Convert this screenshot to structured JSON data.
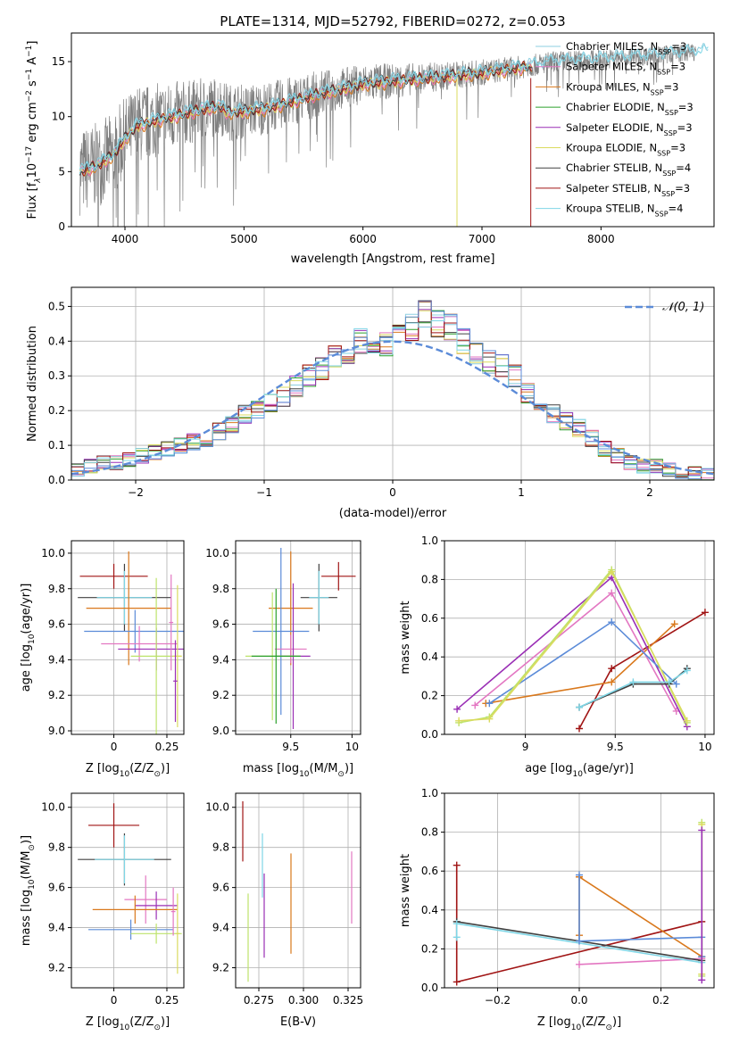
{
  "figure": {
    "title": "PLATE=1314, MJD=52792, FIBERID=0272, z=0.053"
  },
  "colors": {
    "spectrum": "#7f7f7f",
    "chabrier_miles": "#8ecfe0",
    "salpeter_miles": "#e377c2",
    "kroupa_miles": "#d9781c",
    "chabrier_elodie": "#2ca02c",
    "salpeter_elodie": "#9a2fb5",
    "kroupa_elodie": "#dbdb5f",
    "chabrier_stelib": "#404040",
    "salpeter_stelib": "#a01414",
    "kroupa_stelib": "#7fd6e6",
    "gauss": "#5b8bd8",
    "blue_model": "#5b8bd8",
    "lime_model": "#bde36a"
  },
  "chart_data": [
    {
      "id": "spectrum",
      "type": "line",
      "xlabel": "wavelength [Angstrom, rest frame]",
      "ylabel_parts": [
        "Flux [f",
        "λ",
        "10",
        "−17",
        " erg cm",
        "−2",
        " s",
        "−1",
        " A",
        "−1",
        "]"
      ],
      "xlim": [
        3550,
        8950
      ],
      "ylim": [
        0,
        17.6
      ],
      "xticks": [
        4000,
        5000,
        6000,
        7000,
        8000
      ],
      "yticks": [
        0,
        5,
        10,
        15
      ],
      "grid": false,
      "legend_position": "top-right",
      "legend": [
        {
          "label": "Chabrier MILES, N",
          "sub": "SSP",
          "suffix": "=3",
          "color_key": "chabrier_miles"
        },
        {
          "label": "Salpeter MILES, N",
          "sub": "SSP",
          "suffix": "=3",
          "color_key": "salpeter_miles"
        },
        {
          "label": "Kroupa MILES, N",
          "sub": "SSP",
          "suffix": "=3",
          "color_key": "kroupa_miles"
        },
        {
          "label": "Chabrier ELODIE, N",
          "sub": "SSP",
          "suffix": "=3",
          "color_key": "chabrier_elodie"
        },
        {
          "label": "Salpeter ELODIE, N",
          "sub": "SSP",
          "suffix": "=3",
          "color_key": "salpeter_elodie"
        },
        {
          "label": "Kroupa ELODIE, N",
          "sub": "SSP",
          "suffix": "=3",
          "color_key": "kroupa_elodie"
        },
        {
          "label": "Chabrier STELIB, N",
          "sub": "SSP",
          "suffix": "=4",
          "color_key": "chabrier_stelib"
        },
        {
          "label": "Salpeter STELIB, N",
          "sub": "SSP",
          "suffix": "=3",
          "color_key": "salpeter_stelib"
        },
        {
          "label": "Kroupa STELIB, N",
          "sub": "SSP",
          "suffix": "=4",
          "color_key": "kroupa_stelib"
        }
      ],
      "continuum": {
        "x": [
          3620,
          3750,
          3900,
          4000,
          4100,
          4300,
          4500,
          4700,
          4800,
          4860,
          5000,
          5200,
          5400,
          5600,
          5800,
          6000,
          6200,
          6400,
          6600,
          6800,
          7000,
          7200,
          7400,
          7600,
          7800,
          8000,
          8200,
          8400,
          8600,
          8800
        ],
        "y": [
          5.0,
          5.5,
          6.5,
          8.0,
          9.2,
          9.8,
          10.3,
          10.8,
          11.0,
          10.4,
          10.5,
          10.8,
          11.4,
          12.0,
          12.5,
          13.0,
          13.2,
          13.4,
          13.6,
          13.8,
          14.0,
          14.3,
          14.6,
          15.0,
          15.1,
          15.2,
          15.4,
          15.5,
          15.7,
          15.9
        ]
      },
      "noise_profile": {
        "x": [
          3620,
          4000,
          4500,
          5000,
          5500,
          6000,
          6500,
          7000,
          7500,
          8000,
          8900
        ],
        "amp": [
          4.0,
          3.8,
          3.0,
          2.5,
          2.2,
          1.8,
          1.4,
          1.2,
          1.0,
          0.9,
          0.8
        ]
      },
      "models_xrange": [
        3620,
        7420
      ],
      "models_full_xrange": [
        3620,
        8900
      ],
      "model_spikes": [
        {
          "x": 6790,
          "color_key": "kroupa_elodie"
        },
        {
          "x": 7410,
          "color_key": "salpeter_stelib"
        }
      ]
    },
    {
      "id": "residuals",
      "type": "histogram",
      "xlabel": "(data-model)/error",
      "ylabel": "Normed distribution",
      "xlim": [
        -2.5,
        2.5
      ],
      "ylim": [
        0,
        0.555
      ],
      "xticks": [
        -2,
        -1,
        0,
        1,
        2
      ],
      "yticks": [
        0.0,
        0.1,
        0.2,
        0.3,
        0.4,
        0.5
      ],
      "grid": true,
      "legend_position": "top-right",
      "legend": [
        {
          "label": "𝒩(0, 1)",
          "color_key": "gauss"
        }
      ],
      "bin_edges_start": -2.5,
      "bin_width": 0.1,
      "envelope": [
        0.03,
        0.04,
        0.05,
        0.05,
        0.06,
        0.07,
        0.08,
        0.09,
        0.1,
        0.11,
        0.12,
        0.14,
        0.16,
        0.19,
        0.2,
        0.22,
        0.24,
        0.27,
        0.3,
        0.32,
        0.36,
        0.37,
        0.4,
        0.38,
        0.39,
        0.41,
        0.44,
        0.48,
        0.45,
        0.44,
        0.4,
        0.36,
        0.34,
        0.33,
        0.3,
        0.25,
        0.2,
        0.19,
        0.17,
        0.15,
        0.12,
        0.09,
        0.07,
        0.05,
        0.04,
        0.04,
        0.03,
        0.02,
        0.02,
        0.015
      ],
      "gaussian": {
        "mu": 0,
        "sigma": 1
      }
    },
    {
      "id": "age-vs-z",
      "type": "scatter",
      "xlabel": "Z [log10(Z/Z⊙)]",
      "ylabel": "age  [log10(age/yr)]",
      "xlim": [
        -0.2,
        0.33
      ],
      "ylim": [
        8.98,
        10.07
      ],
      "xticks": [
        0.0,
        0.25
      ],
      "ytick_labels": [
        "9.0",
        "9.2",
        "9.4",
        "9.6",
        "9.8",
        "10.0"
      ],
      "grid": true,
      "points": [
        {
          "x": 0.0,
          "y": 9.87,
          "xerr": 0.16,
          "yerr": 0.07,
          "color_key": "salpeter_stelib"
        },
        {
          "x": 0.05,
          "y": 9.75,
          "xerr": 0.22,
          "yerr": 0.19,
          "color_key": "chabrier_stelib"
        },
        {
          "x": 0.05,
          "y": 9.75,
          "xerr": 0.13,
          "yerr": 0.15,
          "color_key": "kroupa_stelib"
        },
        {
          "x": 0.07,
          "y": 9.69,
          "xerr": 0.2,
          "yerr": 0.32,
          "color_key": "kroupa_miles"
        },
        {
          "x": 0.1,
          "y": 9.56,
          "xerr": 0.24,
          "yerr": 0.12,
          "color_key": "blue_model"
        },
        {
          "x": 0.12,
          "y": 9.49,
          "xerr": 0.18,
          "yerr": 0.1,
          "color_key": "salpeter_miles"
        },
        {
          "x": 0.2,
          "y": 9.46,
          "xerr": 0.18,
          "yerr": 0.12,
          "color_key": "salpeter_elodie"
        },
        {
          "x": 0.2,
          "y": 9.42,
          "xerr": 0.12,
          "yerr": 0.44,
          "color_key": "lime_model"
        },
        {
          "x": 0.3,
          "y": 9.42,
          "xerr": 0.02,
          "yerr": 0.4,
          "color_key": "kroupa_elodie"
        },
        {
          "x": 0.27,
          "y": 9.61,
          "xerr": 0.01,
          "yerr": 0.27,
          "color_key": "salpeter_miles"
        },
        {
          "x": 0.29,
          "y": 9.28,
          "xerr": 0.01,
          "yerr": 0.23,
          "color_key": "salpeter_elodie"
        }
      ]
    },
    {
      "id": "age-vs-mass",
      "type": "scatter",
      "xlabel": "mass [log10(M/M⊙)]",
      "ylabel": "",
      "xlim": [
        9.05,
        10.07
      ],
      "ylim": [
        8.98,
        10.07
      ],
      "xticks": [
        9.5,
        10.0
      ],
      "ytick_labels": [
        "9.0",
        "9.2",
        "9.4",
        "9.6",
        "9.8",
        "10.0"
      ],
      "grid": true,
      "points": [
        {
          "x": 9.89,
          "y": 9.87,
          "xerr": 0.14,
          "yerr": 0.08,
          "color_key": "salpeter_stelib"
        },
        {
          "x": 9.73,
          "y": 9.75,
          "xerr": 0.15,
          "yerr": 0.19,
          "color_key": "chabrier_stelib"
        },
        {
          "x": 9.73,
          "y": 9.75,
          "xerr": 0.08,
          "yerr": 0.15,
          "color_key": "kroupa_stelib"
        },
        {
          "x": 9.5,
          "y": 9.69,
          "xerr": 0.18,
          "yerr": 0.32,
          "color_key": "kroupa_miles"
        },
        {
          "x": 9.42,
          "y": 9.56,
          "xerr": 0.23,
          "yerr": 0.47,
          "color_key": "blue_model"
        },
        {
          "x": 9.5,
          "y": 9.46,
          "xerr": 0.13,
          "yerr": 0.08,
          "color_key": "salpeter_miles"
        },
        {
          "x": 9.52,
          "y": 9.42,
          "xerr": 0.14,
          "yerr": 0.41,
          "color_key": "salpeter_elodie"
        },
        {
          "x": 9.35,
          "y": 9.42,
          "xerr": 0.22,
          "yerr": 0.36,
          "color_key": "lime_model"
        },
        {
          "x": 9.38,
          "y": 9.42,
          "xerr": 0.2,
          "yerr": 0.38,
          "color_key": "chabrier_elodie"
        }
      ]
    },
    {
      "id": "weight-vs-age",
      "type": "line",
      "xlabel": "age  [log10(age/yr)]",
      "ylabel": "mass weight",
      "xlim": [
        8.55,
        10.05
      ],
      "ylim": [
        0,
        1.0
      ],
      "xticks": [
        9.0,
        9.5,
        10.0
      ],
      "yticks": [
        0.0,
        0.2,
        0.4,
        0.6,
        0.8,
        1.0
      ],
      "grid": true,
      "series": [
        {
          "color_key": "salpeter_stelib",
          "x": [
            9.3,
            9.48,
            10.0
          ],
          "y": [
            0.03,
            0.34,
            0.63
          ]
        },
        {
          "color_key": "kroupa_miles",
          "x": [
            8.78,
            9.48,
            9.83
          ],
          "y": [
            0.16,
            0.27,
            0.57
          ]
        },
        {
          "color_key": "salpeter_miles",
          "x": [
            8.72,
            9.48,
            9.84
          ],
          "y": [
            0.15,
            0.73,
            0.12
          ]
        },
        {
          "color_key": "salpeter_elodie",
          "x": [
            8.62,
            9.48,
            9.9
          ],
          "y": [
            0.13,
            0.81,
            0.04
          ]
        },
        {
          "color_key": "blue_model",
          "x": [
            8.8,
            9.48,
            9.84
          ],
          "y": [
            0.16,
            0.58,
            0.26
          ]
        },
        {
          "color_key": "lime_model",
          "x": [
            8.63,
            8.8,
            9.48,
            9.9
          ],
          "y": [
            0.06,
            0.09,
            0.85,
            0.06
          ]
        },
        {
          "color_key": "kroupa_elodie",
          "x": [
            8.63,
            8.8,
            9.48,
            9.9
          ],
          "y": [
            0.07,
            0.08,
            0.84,
            0.07
          ]
        },
        {
          "color_key": "chabrier_stelib",
          "x": [
            9.3,
            9.6,
            9.8,
            9.9
          ],
          "y": [
            0.14,
            0.26,
            0.26,
            0.34
          ]
        },
        {
          "color_key": "kroupa_stelib",
          "x": [
            9.3,
            9.6,
            9.8,
            9.9
          ],
          "y": [
            0.14,
            0.27,
            0.27,
            0.33
          ]
        }
      ]
    },
    {
      "id": "mass-vs-z",
      "type": "scatter",
      "xlabel": "Z [log10(Z/Z⊙)]",
      "ylabel": "mass [log10(M/M⊙)]",
      "xlim": [
        -0.2,
        0.33
      ],
      "ylim": [
        9.1,
        10.07
      ],
      "xticks": [
        0.0,
        0.25
      ],
      "ytick_labels": [
        "9.2",
        "9.4",
        "9.6",
        "9.8",
        "10.0"
      ],
      "grid": true,
      "points": [
        {
          "x": 0.0,
          "y": 9.91,
          "xerr": 0.12,
          "yerr": 0.11,
          "color_key": "salpeter_stelib"
        },
        {
          "x": 0.05,
          "y": 9.74,
          "xerr": 0.22,
          "yerr": 0.13,
          "color_key": "chabrier_stelib"
        },
        {
          "x": 0.05,
          "y": 9.74,
          "xerr": 0.14,
          "yerr": 0.12,
          "color_key": "kroupa_stelib"
        },
        {
          "x": 0.15,
          "y": 9.54,
          "xerr": 0.1,
          "yerr": 0.12,
          "color_key": "salpeter_miles"
        },
        {
          "x": 0.2,
          "y": 9.51,
          "xerr": 0.1,
          "yerr": 0.07,
          "color_key": "salpeter_elodie"
        },
        {
          "x": 0.1,
          "y": 9.49,
          "xerr": 0.2,
          "yerr": 0.07,
          "color_key": "kroupa_miles"
        },
        {
          "x": 0.08,
          "y": 9.39,
          "xerr": 0.2,
          "yerr": 0.05,
          "color_key": "blue_model"
        },
        {
          "x": 0.2,
          "y": 9.37,
          "xerr": 0.12,
          "yerr": 0.05,
          "color_key": "lime_model"
        },
        {
          "x": 0.3,
          "y": 9.37,
          "xerr": 0.01,
          "yerr": 0.2,
          "color_key": "kroupa_elodie"
        },
        {
          "x": 0.28,
          "y": 9.48,
          "xerr": 0.01,
          "yerr": 0.12,
          "color_key": "salpeter_miles"
        }
      ]
    },
    {
      "id": "mass-vs-ebv",
      "type": "scatter",
      "xlabel": "E(B-V)",
      "ylabel": "",
      "xlim": [
        0.262,
        0.332
      ],
      "ylim": [
        9.1,
        10.07
      ],
      "xticks": [
        0.275,
        0.3,
        0.325
      ],
      "xtick_labels": [
        "0.275",
        "0.300",
        "0.325"
      ],
      "ytick_labels": [
        "9.2",
        "9.4",
        "9.6",
        "9.8",
        "10.0"
      ],
      "grid": true,
      "points": [
        {
          "x": 0.266,
          "y": 9.88,
          "yerr": 0.15,
          "color_key": "salpeter_stelib"
        },
        {
          "x": 0.269,
          "y": 9.35,
          "yerr": 0.22,
          "color_key": "lime_model"
        },
        {
          "x": 0.277,
          "y": 9.71,
          "yerr": 0.16,
          "color_key": "kroupa_stelib"
        },
        {
          "x": 0.278,
          "y": 9.46,
          "yerr": 0.21,
          "color_key": "salpeter_elodie"
        },
        {
          "x": 0.293,
          "y": 9.52,
          "yerr": 0.25,
          "color_key": "kroupa_miles"
        },
        {
          "x": 0.327,
          "y": 9.6,
          "yerr": 0.18,
          "color_key": "salpeter_miles"
        }
      ]
    },
    {
      "id": "weight-vs-z",
      "type": "line",
      "xlabel": "Z [log10(Z/Z⊙)]",
      "ylabel": "mass weight",
      "xlim": [
        -0.33,
        0.33
      ],
      "ylim": [
        0,
        1.0
      ],
      "xticks": [
        -0.2,
        0.0,
        0.2
      ],
      "xtick_labels": [
        "−0.2",
        "0.0",
        "0.2"
      ],
      "yticks": [
        0.0,
        0.2,
        0.4,
        0.6,
        0.8,
        1.0
      ],
      "grid": true,
      "series": [
        {
          "color_key": "salpeter_stelib",
          "x": [
            -0.3,
            -0.3,
            0.3
          ],
          "y": [
            0.63,
            0.03,
            0.34
          ]
        },
        {
          "color_key": "kroupa_miles",
          "x": [
            0.0,
            0.0,
            0.3
          ],
          "y": [
            0.27,
            0.57,
            0.16
          ]
        },
        {
          "color_key": "salpeter_miles",
          "x": [
            0.0,
            0.3
          ],
          "y": [
            0.12,
            0.15
          ]
        },
        {
          "color_key": "chabrier_stelib",
          "x": [
            -0.3,
            0.3
          ],
          "y": [
            0.34,
            0.14
          ]
        },
        {
          "color_key": "kroupa_stelib",
          "x": [
            -0.3,
            -0.3,
            0.3
          ],
          "y": [
            0.26,
            0.33,
            0.13
          ]
        },
        {
          "color_key": "blue_model",
          "x": [
            0.0,
            0.0,
            0.3,
            0.3
          ],
          "y": [
            0.58,
            0.24,
            0.26,
            0.16
          ]
        },
        {
          "color_key": "lime_model",
          "x": [
            0.3,
            0.3
          ],
          "y": [
            0.85,
            0.06
          ]
        },
        {
          "color_key": "kroupa_elodie",
          "x": [
            0.3,
            0.3
          ],
          "y": [
            0.84,
            0.07
          ]
        },
        {
          "color_key": "salpeter_elodie",
          "x": [
            0.3,
            0.3
          ],
          "y": [
            0.81,
            0.04
          ]
        }
      ]
    }
  ]
}
